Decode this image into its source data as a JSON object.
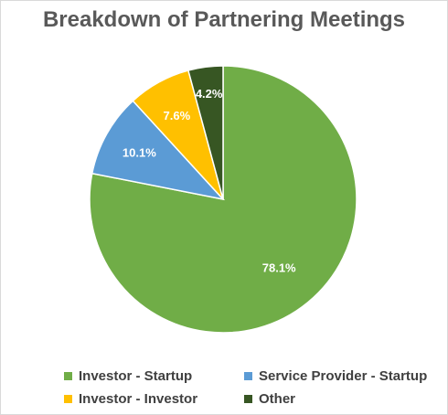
{
  "chart_data": {
    "type": "pie",
    "title": "Breakdown of Partnering Meetings",
    "slices": [
      {
        "name": "Investor - Startup",
        "value": 78.1,
        "label": "78.1%",
        "color": "#70ad47"
      },
      {
        "name": "Service Provider - Startup",
        "value": 10.1,
        "label": "10.1%",
        "color": "#5b9bd5"
      },
      {
        "name": "Investor - Investor",
        "value": 7.6,
        "label": "7.6%",
        "color": "#ffc000"
      },
      {
        "name": "Other",
        "value": 4.2,
        "label": "4.2%",
        "color": "#375623"
      }
    ],
    "legend_position": "bottom"
  }
}
